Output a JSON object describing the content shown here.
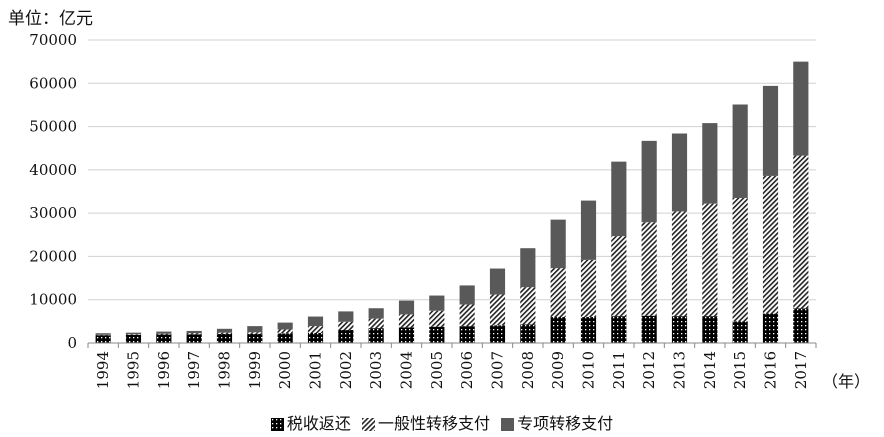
{
  "unit_label": "单位：亿元",
  "x_unit_label": "（年）",
  "chart_data": {
    "type": "bar",
    "stacked": true,
    "title": "",
    "ylabel": "单位：亿元",
    "xlabel": "（年）",
    "ylim": [
      0,
      70000
    ],
    "yticks": [
      0,
      10000,
      20000,
      30000,
      40000,
      50000,
      60000,
      70000
    ],
    "grid": true,
    "legend_position": "bottom",
    "categories": [
      "1994",
      "1995",
      "1996",
      "1997",
      "1998",
      "1999",
      "2000",
      "2001",
      "2002",
      "2003",
      "2004",
      "2005",
      "2006",
      "2007",
      "2008",
      "2009",
      "2010",
      "2011",
      "2012",
      "2013",
      "2014",
      "2015",
      "2016",
      "2017"
    ],
    "series": [
      {
        "name": "税收返还",
        "pattern": "dotted-black",
        "color": "#000000",
        "values": [
          1800,
          1870,
          1950,
          2010,
          2080,
          2120,
          2210,
          2310,
          3000,
          3430,
          3600,
          3760,
          3900,
          4100,
          4300,
          6000,
          6000,
          6200,
          6300,
          6200,
          6200,
          5000,
          6800,
          8000
        ]
      },
      {
        "name": "一般性转移支付",
        "pattern": "diagonal-hatch",
        "color": "#555555",
        "values": [
          100,
          150,
          200,
          270,
          310,
          360,
          900,
          1600,
          1900,
          2200,
          3000,
          3700,
          5000,
          7100,
          8600,
          11300,
          13200,
          18500,
          21600,
          24200,
          26000,
          28500,
          31800,
          35300
        ]
      },
      {
        "name": "专项转移支付",
        "pattern": "solid",
        "color": "#595959",
        "values": [
          360,
          370,
          490,
          510,
          890,
          1420,
          1600,
          2200,
          2400,
          2400,
          3200,
          3500,
          4400,
          6000,
          9000,
          11200,
          13700,
          17200,
          18800,
          18000,
          18600,
          21600,
          20800,
          21700
        ]
      }
    ]
  }
}
